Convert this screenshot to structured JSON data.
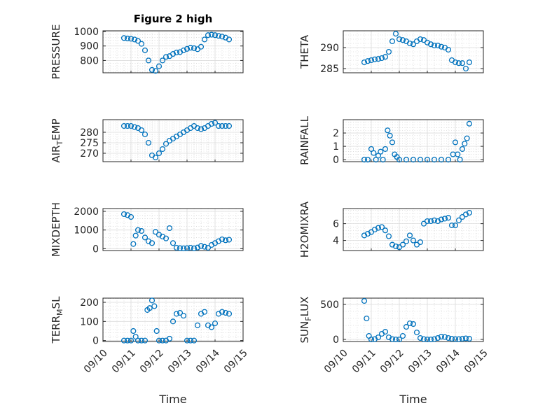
{
  "chart_data": [
    {
      "id": "pressure",
      "type": "scatter",
      "title": "Figure 2 high",
      "xlabel": "",
      "ylabel": "PRESSURE",
      "xlim": [
        "09/10",
        "09/15"
      ],
      "ylim": [
        715,
        1005
      ],
      "yticks": [
        800,
        900,
        1000
      ],
      "xticks": [],
      "grid": true,
      "minor_grid": true,
      "marker": "circle",
      "color": "#0072BD",
      "x": [
        "09/10 18:00",
        "09/10 21:00",
        "09/11 00:00",
        "09/11 03:00",
        "09/11 06:00",
        "09/11 09:00",
        "09/11 12:00",
        "09/11 15:00",
        "09/11 18:00",
        "09/11 21:00",
        "09/12 00:00",
        "09/12 03:00",
        "09/12 06:00",
        "09/12 09:00",
        "09/12 12:00",
        "09/12 15:00",
        "09/12 18:00",
        "09/12 21:00",
        "09/13 00:00",
        "09/13 03:00",
        "09/13 06:00",
        "09/13 09:00",
        "09/13 12:00",
        "09/13 15:00",
        "09/13 18:00",
        "09/13 21:00",
        "09/14 00:00",
        "09/14 03:00",
        "09/14 06:00",
        "09/14 09:00",
        "09/14 12:00"
      ],
      "y": [
        955,
        952,
        950,
        945,
        935,
        915,
        870,
        800,
        735,
        728,
        760,
        800,
        825,
        830,
        845,
        855,
        858,
        870,
        880,
        888,
        885,
        878,
        895,
        945,
        975,
        978,
        975,
        970,
        965,
        958,
        945
      ]
    },
    {
      "id": "theta",
      "type": "scatter",
      "title": "",
      "xlabel": "",
      "ylabel": "THETA",
      "xlim": [
        "09/10",
        "09/15"
      ],
      "ylim": [
        284,
        294
      ],
      "yticks": [
        285,
        290
      ],
      "xticks": [],
      "grid": true,
      "minor_grid": true,
      "marker": "circle",
      "color": "#0072BD",
      "x": [
        "09/10 18:00",
        "09/10 21:00",
        "09/11 00:00",
        "09/11 03:00",
        "09/11 06:00",
        "09/11 09:00",
        "09/11 12:00",
        "09/11 15:00",
        "09/11 18:00",
        "09/11 21:00",
        "09/12 00:00",
        "09/12 03:00",
        "09/12 06:00",
        "09/12 09:00",
        "09/12 12:00",
        "09/12 15:00",
        "09/12 18:00",
        "09/12 21:00",
        "09/13 00:00",
        "09/13 03:00",
        "09/13 06:00",
        "09/13 09:00",
        "09/13 12:00",
        "09/13 15:00",
        "09/13 18:00",
        "09/13 21:00",
        "09/14 00:00",
        "09/14 03:00",
        "09/14 06:00",
        "09/14 09:00",
        "09/14 12:00"
      ],
      "y": [
        286.5,
        286.8,
        287.0,
        287.2,
        287.3,
        287.5,
        287.8,
        289.0,
        291.5,
        293.3,
        292.0,
        291.8,
        291.5,
        291.0,
        290.8,
        291.5,
        292.0,
        291.8,
        291.2,
        290.8,
        290.5,
        290.5,
        290.2,
        290.0,
        289.5,
        287.0,
        286.5,
        286.3,
        286.3,
        285.0,
        286.5
      ]
    },
    {
      "id": "air_temp",
      "type": "scatter",
      "title": "",
      "xlabel": "",
      "ylabel": "AIR_TEMP",
      "xlim": [
        "09/10",
        "09/15"
      ],
      "ylim": [
        266,
        286
      ],
      "yticks": [
        270,
        275,
        280
      ],
      "xticks": [],
      "grid": true,
      "minor_grid": true,
      "marker": "circle",
      "color": "#0072BD",
      "x": [
        "09/10 18:00",
        "09/10 21:00",
        "09/11 00:00",
        "09/11 03:00",
        "09/11 06:00",
        "09/11 09:00",
        "09/11 12:00",
        "09/11 15:00",
        "09/11 18:00",
        "09/11 21:00",
        "09/12 00:00",
        "09/12 03:00",
        "09/12 06:00",
        "09/12 09:00",
        "09/12 12:00",
        "09/12 15:00",
        "09/12 18:00",
        "09/12 21:00",
        "09/13 00:00",
        "09/13 03:00",
        "09/13 06:00",
        "09/13 09:00",
        "09/13 12:00",
        "09/13 15:00",
        "09/13 18:00",
        "09/13 21:00",
        "09/14 00:00",
        "09/14 03:00",
        "09/14 06:00",
        "09/14 09:00",
        "09/14 12:00"
      ],
      "y": [
        283,
        283,
        283,
        282.5,
        282,
        281,
        279,
        275,
        269,
        268,
        270,
        272,
        274.5,
        276,
        277,
        278,
        279,
        280,
        281,
        282,
        283,
        282,
        281.5,
        282,
        283,
        284,
        284.5,
        283,
        283,
        283,
        283
      ]
    },
    {
      "id": "rainfall",
      "type": "scatter",
      "title": "",
      "xlabel": "",
      "ylabel": "RAINFALL",
      "xlim": [
        "09/10",
        "09/15"
      ],
      "ylim": [
        -0.15,
        3.0
      ],
      "yticks": [
        0,
        1,
        2
      ],
      "xticks": [],
      "grid": true,
      "minor_grid": true,
      "marker": "circle",
      "color": "#0072BD",
      "x": [
        "09/10 18:00",
        "09/10 21:00",
        "09/11 00:00",
        "09/11 02:00",
        "09/11 04:00",
        "09/11 06:00",
        "09/11 08:00",
        "09/11 10:00",
        "09/11 12:00",
        "09/11 14:00",
        "09/11 16:00",
        "09/11 18:00",
        "09/11 20:00",
        "09/11 22:00",
        "09/12 00:00",
        "09/12 06:00",
        "09/12 12:00",
        "09/12 18:00",
        "09/13 00:00",
        "09/13 06:00",
        "09/13 12:00",
        "09/13 18:00",
        "09/13 22:00",
        "09/14 00:00",
        "09/14 02:00",
        "09/14 04:00",
        "09/14 06:00",
        "09/14 08:00",
        "09/14 10:00",
        "09/14 12:00"
      ],
      "y": [
        0,
        0,
        0.8,
        0.5,
        0,
        0.3,
        0.6,
        0,
        0.8,
        2.2,
        1.8,
        1.3,
        0.4,
        0.2,
        0,
        0,
        0,
        0,
        0,
        0,
        0,
        0,
        0.4,
        1.3,
        0.4,
        0,
        0.8,
        1.2,
        1.6,
        2.7
      ]
    },
    {
      "id": "mixdepth",
      "type": "scatter",
      "title": "",
      "xlabel": "",
      "ylabel": "MIXDEPTH",
      "xlim": [
        "09/10",
        "09/15"
      ],
      "ylim": [
        -100,
        2150
      ],
      "yticks": [
        0,
        1000,
        2000
      ],
      "xticks": [],
      "grid": true,
      "minor_grid": true,
      "marker": "circle",
      "color": "#0072BD",
      "x": [
        "09/10 18:00",
        "09/10 21:00",
        "09/11 00:00",
        "09/11 02:00",
        "09/11 04:00",
        "09/11 06:00",
        "09/11 09:00",
        "09/11 12:00",
        "09/11 15:00",
        "09/11 18:00",
        "09/11 21:00",
        "09/12 00:00",
        "09/12 03:00",
        "09/12 06:00",
        "09/12 09:00",
        "09/12 12:00",
        "09/12 15:00",
        "09/12 18:00",
        "09/12 21:00",
        "09/13 00:00",
        "09/13 03:00",
        "09/13 06:00",
        "09/13 09:00",
        "09/13 12:00",
        "09/13 15:00",
        "09/13 18:00",
        "09/13 21:00",
        "09/14 00:00",
        "09/14 03:00",
        "09/14 06:00",
        "09/14 09:00",
        "09/14 12:00"
      ],
      "y": [
        1850,
        1800,
        1700,
        250,
        700,
        1000,
        950,
        600,
        400,
        300,
        900,
        750,
        650,
        550,
        1100,
        300,
        50,
        30,
        20,
        30,
        50,
        20,
        60,
        150,
        100,
        50,
        200,
        300,
        400,
        500,
        450,
        480
      ]
    },
    {
      "id": "h2omixra",
      "type": "scatter",
      "title": "",
      "xlabel": "",
      "ylabel": "H2OMIXRA",
      "xlim": [
        "09/10",
        "09/15"
      ],
      "ylim": [
        2.8,
        7.8
      ],
      "yticks": [
        4,
        6
      ],
      "xticks": [],
      "grid": true,
      "minor_grid": true,
      "marker": "circle",
      "color": "#0072BD",
      "x": [
        "09/10 18:00",
        "09/10 21:00",
        "09/11 00:00",
        "09/11 03:00",
        "09/11 06:00",
        "09/11 09:00",
        "09/11 12:00",
        "09/11 15:00",
        "09/11 18:00",
        "09/11 21:00",
        "09/12 00:00",
        "09/12 03:00",
        "09/12 06:00",
        "09/12 09:00",
        "09/12 12:00",
        "09/12 15:00",
        "09/12 18:00",
        "09/12 21:00",
        "09/13 00:00",
        "09/13 03:00",
        "09/13 06:00",
        "09/13 09:00",
        "09/13 12:00",
        "09/13 15:00",
        "09/13 18:00",
        "09/13 21:00",
        "09/14 00:00",
        "09/14 03:00",
        "09/14 06:00",
        "09/14 09:00",
        "09/14 12:00"
      ],
      "y": [
        4.6,
        4.8,
        5.0,
        5.3,
        5.5,
        5.6,
        5.2,
        4.5,
        3.5,
        3.3,
        3.2,
        3.5,
        3.9,
        4.6,
        4.0,
        3.5,
        3.8,
        6.0,
        6.3,
        6.3,
        6.4,
        6.3,
        6.5,
        6.6,
        6.7,
        5.8,
        5.8,
        6.4,
        6.8,
        7.1,
        7.3
      ]
    },
    {
      "id": "terr_msl",
      "type": "scatter",
      "title": "",
      "xlabel": "Time",
      "ylabel": "TERR_MSL",
      "xlim": [
        "09/10",
        "09/15"
      ],
      "ylim": [
        -5,
        222
      ],
      "yticks": [
        0,
        100,
        200
      ],
      "xticks": [
        "09/10",
        "09/11",
        "09/12",
        "09/13",
        "09/14",
        "09/15"
      ],
      "grid": true,
      "minor_grid": true,
      "marker": "circle",
      "color": "#0072BD",
      "x": [
        "09/10 18:00",
        "09/10 21:00",
        "09/11 00:00",
        "09/11 02:00",
        "09/11 04:00",
        "09/11 06:00",
        "09/11 09:00",
        "09/11 12:00",
        "09/11 14:00",
        "09/11 16:00",
        "09/11 18:00",
        "09/11 20:00",
        "09/11 22:00",
        "09/12 00:00",
        "09/12 03:00",
        "09/12 06:00",
        "09/12 09:00",
        "09/12 12:00",
        "09/12 15:00",
        "09/12 18:00",
        "09/12 21:00",
        "09/13 00:00",
        "09/13 03:00",
        "09/13 06:00",
        "09/13 09:00",
        "09/13 12:00",
        "09/13 15:00",
        "09/13 18:00",
        "09/13 21:00",
        "09/14 00:00",
        "09/14 03:00",
        "09/14 06:00",
        "09/14 09:00",
        "09/14 12:00"
      ],
      "y": [
        0,
        0,
        0,
        50,
        20,
        0,
        0,
        0,
        160,
        170,
        210,
        180,
        50,
        0,
        0,
        0,
        10,
        100,
        140,
        145,
        130,
        0,
        0,
        0,
        80,
        140,
        150,
        80,
        70,
        90,
        140,
        150,
        145,
        140
      ]
    },
    {
      "id": "sun_flux",
      "type": "scatter",
      "title": "",
      "xlabel": "Time",
      "ylabel": "SUN_FLUX",
      "xlim": [
        "09/10",
        "09/15"
      ],
      "ylim": [
        -30,
        590
      ],
      "yticks": [
        0,
        500
      ],
      "xticks": [
        "09/10",
        "09/11",
        "09/12",
        "09/13",
        "09/14",
        "09/15"
      ],
      "grid": true,
      "minor_grid": true,
      "marker": "circle",
      "color": "#0072BD",
      "x": [
        "09/10 18:00",
        "09/10 20:00",
        "09/10 22:00",
        "09/11 00:00",
        "09/11 03:00",
        "09/11 06:00",
        "09/11 09:00",
        "09/11 12:00",
        "09/11 15:00",
        "09/11 18:00",
        "09/11 21:00",
        "09/12 00:00",
        "09/12 03:00",
        "09/12 06:00",
        "09/12 09:00",
        "09/12 12:00",
        "09/12 15:00",
        "09/12 18:00",
        "09/12 21:00",
        "09/13 00:00",
        "09/13 03:00",
        "09/13 06:00",
        "09/13 09:00",
        "09/13 12:00",
        "09/13 15:00",
        "09/13 18:00",
        "09/13 21:00",
        "09/14 00:00",
        "09/14 03:00",
        "09/14 06:00",
        "09/14 09:00",
        "09/14 12:00"
      ],
      "y": [
        550,
        300,
        50,
        0,
        5,
        30,
        80,
        110,
        30,
        5,
        0,
        0,
        50,
        180,
        230,
        220,
        100,
        20,
        5,
        0,
        0,
        5,
        20,
        40,
        35,
        20,
        10,
        5,
        5,
        10,
        15,
        10
      ]
    }
  ]
}
